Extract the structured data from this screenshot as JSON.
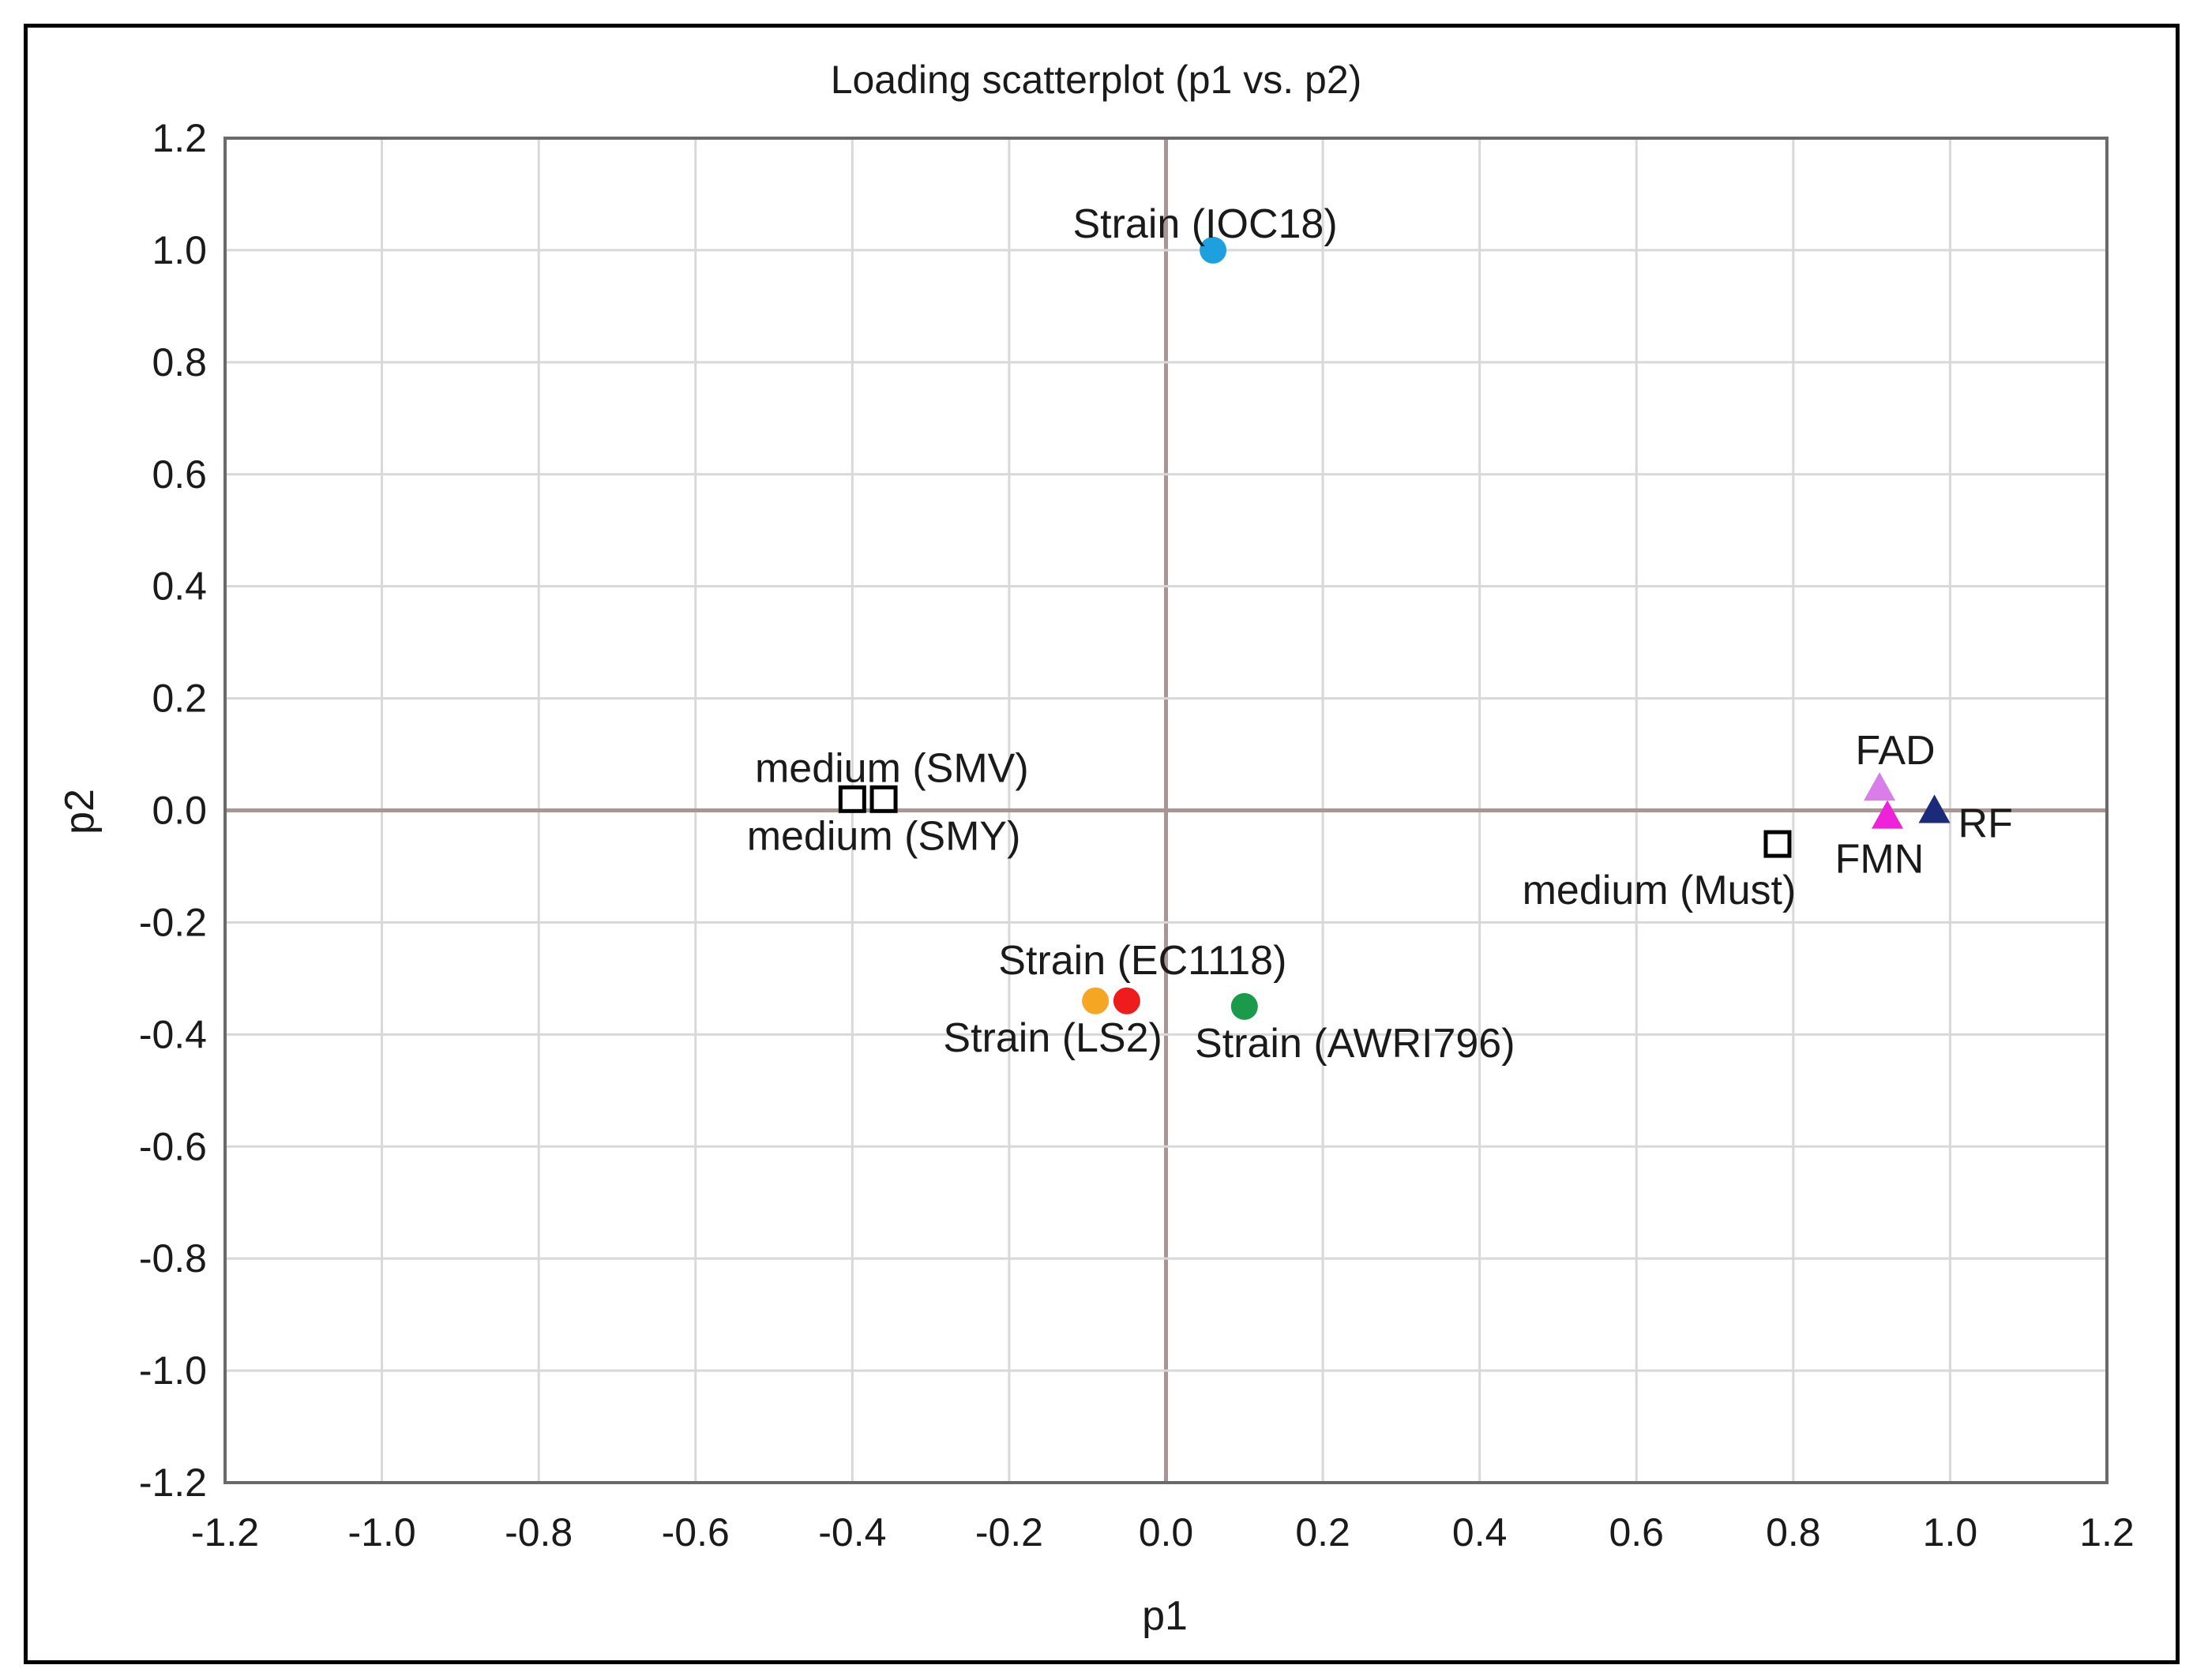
{
  "chart_data": {
    "type": "scatter",
    "title": "Loading scatterplot (p1 vs. p2)",
    "xlabel": "p1",
    "ylabel": "p2",
    "xlim": [
      -1.2,
      1.2
    ],
    "ylim": [
      -1.2,
      1.2
    ],
    "xticks": [
      "-1.2",
      "-1.0",
      "-0.8",
      "-0.6",
      "-0.4",
      "-0.2",
      "0.0",
      "0.2",
      "0.4",
      "0.6",
      "0.8",
      "1.0",
      "1.2"
    ],
    "yticks": [
      "1.2",
      "1.0",
      "0.8",
      "0.6",
      "0.4",
      "0.2",
      "0.0",
      "-0.2",
      "-0.4",
      "-0.6",
      "-0.8",
      "-1.0",
      "-1.2"
    ],
    "grid": true,
    "points": [
      {
        "label": "Strain (IOC18)",
        "x": 0.06,
        "y": 1.0,
        "marker": "circle",
        "color": "#1e9fe0"
      },
      {
        "label": "Strain (EC1118)",
        "x": -0.05,
        "y": -0.34,
        "marker": "circle",
        "color": "#ee1c1c"
      },
      {
        "label": "Strain (LS2)",
        "x": -0.09,
        "y": -0.34,
        "marker": "circle",
        "color": "#f5a623"
      },
      {
        "label": "Strain (AWRI796)",
        "x": 0.1,
        "y": -0.35,
        "marker": "circle",
        "color": "#1a9a4a"
      },
      {
        "label": "medium (SMV)",
        "x": -0.4,
        "y": 0.02,
        "marker": "square",
        "color": "#000000"
      },
      {
        "label": "medium (SMY)",
        "x": -0.36,
        "y": 0.02,
        "marker": "square",
        "color": "#000000"
      },
      {
        "label": "medium (Must)",
        "x": 0.78,
        "y": -0.06,
        "marker": "square",
        "color": "#000000"
      },
      {
        "label": "FAD",
        "x": 0.91,
        "y": 0.04,
        "marker": "triangle",
        "color": "#d97ee8"
      },
      {
        "label": "FMN",
        "x": 0.92,
        "y": -0.01,
        "marker": "triangle",
        "color": "#ee22d8"
      },
      {
        "label": "RF",
        "x": 0.98,
        "y": 0.0,
        "marker": "triangle",
        "color": "#1c2a7a"
      }
    ]
  }
}
